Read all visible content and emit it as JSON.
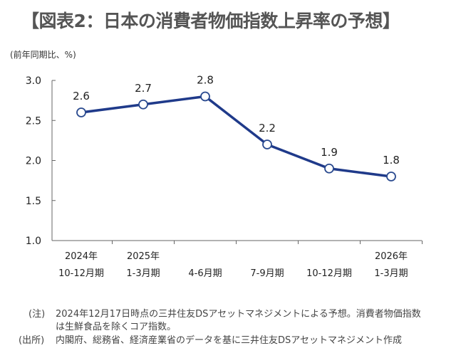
{
  "title": "【図表2：日本の消費者物価指数上昇率の予想】",
  "chart_data": {
    "type": "line",
    "title": "【図表2：日本の消費者物価指数上昇率の予想】",
    "ylabel": "(前年同期比、%)",
    "xlabel": "",
    "categories": [
      [
        "2024年",
        "10-12月期"
      ],
      [
        "2025年",
        "1-3月期"
      ],
      [
        "4-6月期"
      ],
      [
        "7-9月期"
      ],
      [
        "10-12月期"
      ],
      [
        "2026年",
        "1-3月期"
      ]
    ],
    "series": [
      {
        "name": "消費者物価指数上昇率",
        "values": [
          2.6,
          2.7,
          2.8,
          2.2,
          1.9,
          1.8
        ],
        "color": "#1f3a8a"
      }
    ],
    "data_labels": [
      "2.6",
      "2.7",
      "2.8",
      "2.2",
      "1.9",
      "1.8"
    ],
    "ylim": [
      1.0,
      3.0
    ],
    "yticks": [
      "1.0",
      "1.5",
      "2.0",
      "2.5",
      "3.0"
    ],
    "grid": false,
    "legend": "none"
  },
  "notes": {
    "note_label": "(注)",
    "note_line1": "2024年12月17日時点の三井住友DSアセットマネジメントによる予想。消費者物価指数",
    "note_line2": "は生鮮食品を除くコア指数。",
    "source_label": "(出所)",
    "source_text": "内閣府、総務省、経済産業省のデータを基に三井住友DSアセットマネジメント作成"
  }
}
